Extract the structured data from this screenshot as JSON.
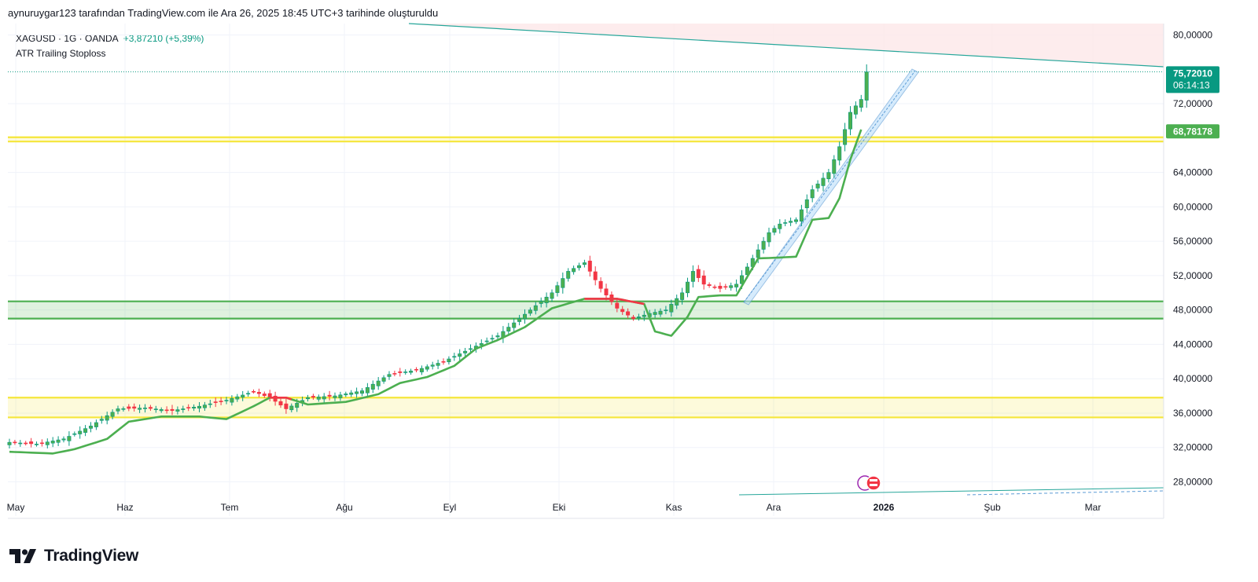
{
  "caption": "aynuruygar123 tarafından TradingView.com ile Ara 26, 2025 18:45 UTC+3 tarihinde oluşturuldu",
  "legend": {
    "symbol": "XAGUSD · 1G · OANDA",
    "change": "+3,87210 (+5,39%)",
    "indicator": "ATR Trailing Stoploss"
  },
  "brand": {
    "name": "TradingView",
    "logo_icon": "tradingview-logo-icon"
  },
  "colors": {
    "up": "#089981",
    "down": "#f23645",
    "candle_up_fill": "#4caf50",
    "stop": "#4caf50",
    "stop_bear": "#f23645",
    "yellow": "#f5e63a",
    "green_zone": "#4caf50",
    "channel": "#5b9bd5",
    "trend": "#26a69a",
    "resistance_fill": "#fde7e9"
  },
  "chart_data": {
    "type": "candlestick",
    "symbol": "XAGUSD",
    "interval": "1G",
    "y_axis_ticks": [
      "80,00000",
      "72,00000",
      "64,00000",
      "60,00000",
      "56,00000",
      "52,00000",
      "48,00000",
      "44,00000",
      "40,00000",
      "36,00000",
      "32,00000",
      "28,00000"
    ],
    "x_axis_ticks": [
      {
        "label": "May",
        "bold": false
      },
      {
        "label": "Haz",
        "bold": false
      },
      {
        "label": "Tem",
        "bold": false
      },
      {
        "label": "Ağu",
        "bold": false
      },
      {
        "label": "Eyl",
        "bold": false
      },
      {
        "label": "Eki",
        "bold": false
      },
      {
        "label": "Kas",
        "bold": false
      },
      {
        "label": "Ara",
        "bold": false
      },
      {
        "label": "2026",
        "bold": true
      },
      {
        "label": "Şub",
        "bold": false
      },
      {
        "label": "Mar",
        "bold": false
      }
    ],
    "last_price": {
      "value": "75,72010",
      "countdown": "06:14:13"
    },
    "stop_price": {
      "value": "68,78178"
    },
    "ylim": [
      26,
      82
    ],
    "zones": [
      {
        "name": "upper-yellow",
        "low": 67.6,
        "high": 68.1
      },
      {
        "name": "green-support",
        "low": 47.0,
        "high": 49.0
      },
      {
        "name": "lower-yellow",
        "low": 35.5,
        "high": 37.8
      }
    ],
    "price_path": [
      [
        0,
        32.6
      ],
      [
        5,
        32.4
      ],
      [
        10,
        33.0
      ],
      [
        15,
        34.5
      ],
      [
        20,
        36.5
      ],
      [
        25,
        36.6
      ],
      [
        30,
        36.3
      ],
      [
        35,
        36.8
      ],
      [
        40,
        37.5
      ],
      [
        45,
        38.5
      ],
      [
        48,
        37.8
      ],
      [
        51,
        36.5
      ],
      [
        55,
        37.8
      ],
      [
        60,
        38.0
      ],
      [
        65,
        38.6
      ],
      [
        70,
        40.5
      ],
      [
        75,
        41.0
      ],
      [
        80,
        42.0
      ],
      [
        85,
        43.5
      ],
      [
        90,
        45.0
      ],
      [
        95,
        47.5
      ],
      [
        100,
        50.0
      ],
      [
        103,
        52.5
      ],
      [
        106,
        53.5
      ],
      [
        109,
        50.5
      ],
      [
        112,
        48.2
      ],
      [
        115,
        47.0
      ],
      [
        118,
        47.6
      ],
      [
        121,
        48.0
      ],
      [
        124,
        50.0
      ],
      [
        126,
        52.5
      ],
      [
        128,
        51.0
      ],
      [
        131,
        50.5
      ],
      [
        134,
        51.0
      ],
      [
        137,
        54.0
      ],
      [
        140,
        57.0
      ],
      [
        142,
        58.0
      ],
      [
        145,
        58.5
      ],
      [
        148,
        62.0
      ],
      [
        151,
        64.0
      ],
      [
        153,
        67.0
      ],
      [
        155,
        71.0
      ],
      [
        157,
        72.5
      ],
      [
        158,
        75.7
      ]
    ],
    "stoploss_path": [
      [
        0,
        31.5
      ],
      [
        8,
        31.3
      ],
      [
        12,
        31.8
      ],
      [
        18,
        33.0
      ],
      [
        22,
        35.0
      ],
      [
        28,
        35.6
      ],
      [
        35,
        35.6
      ],
      [
        40,
        35.3
      ],
      [
        45,
        36.8
      ],
      [
        48,
        37.8
      ],
      [
        51,
        37.8
      ],
      [
        55,
        37.0
      ],
      [
        62,
        37.3
      ],
      [
        68,
        38.2
      ],
      [
        72,
        39.5
      ],
      [
        77,
        40.2
      ],
      [
        82,
        41.5
      ],
      [
        86,
        43.5
      ],
      [
        90,
        44.5
      ],
      [
        95,
        46.0
      ],
      [
        100,
        48.2
      ],
      [
        106,
        49.3
      ],
      [
        112,
        49.3
      ],
      [
        117,
        48.7
      ],
      [
        119,
        45.5
      ],
      [
        122,
        45.0
      ],
      [
        125,
        47.2
      ],
      [
        127,
        49.5
      ],
      [
        131,
        49.7
      ],
      [
        134,
        49.7
      ],
      [
        138,
        54.0
      ],
      [
        142,
        54.1
      ],
      [
        145,
        54.2
      ],
      [
        148,
        58.5
      ],
      [
        151,
        58.7
      ],
      [
        153,
        61.0
      ],
      [
        155,
        65.5
      ],
      [
        157,
        69.0
      ]
    ]
  }
}
